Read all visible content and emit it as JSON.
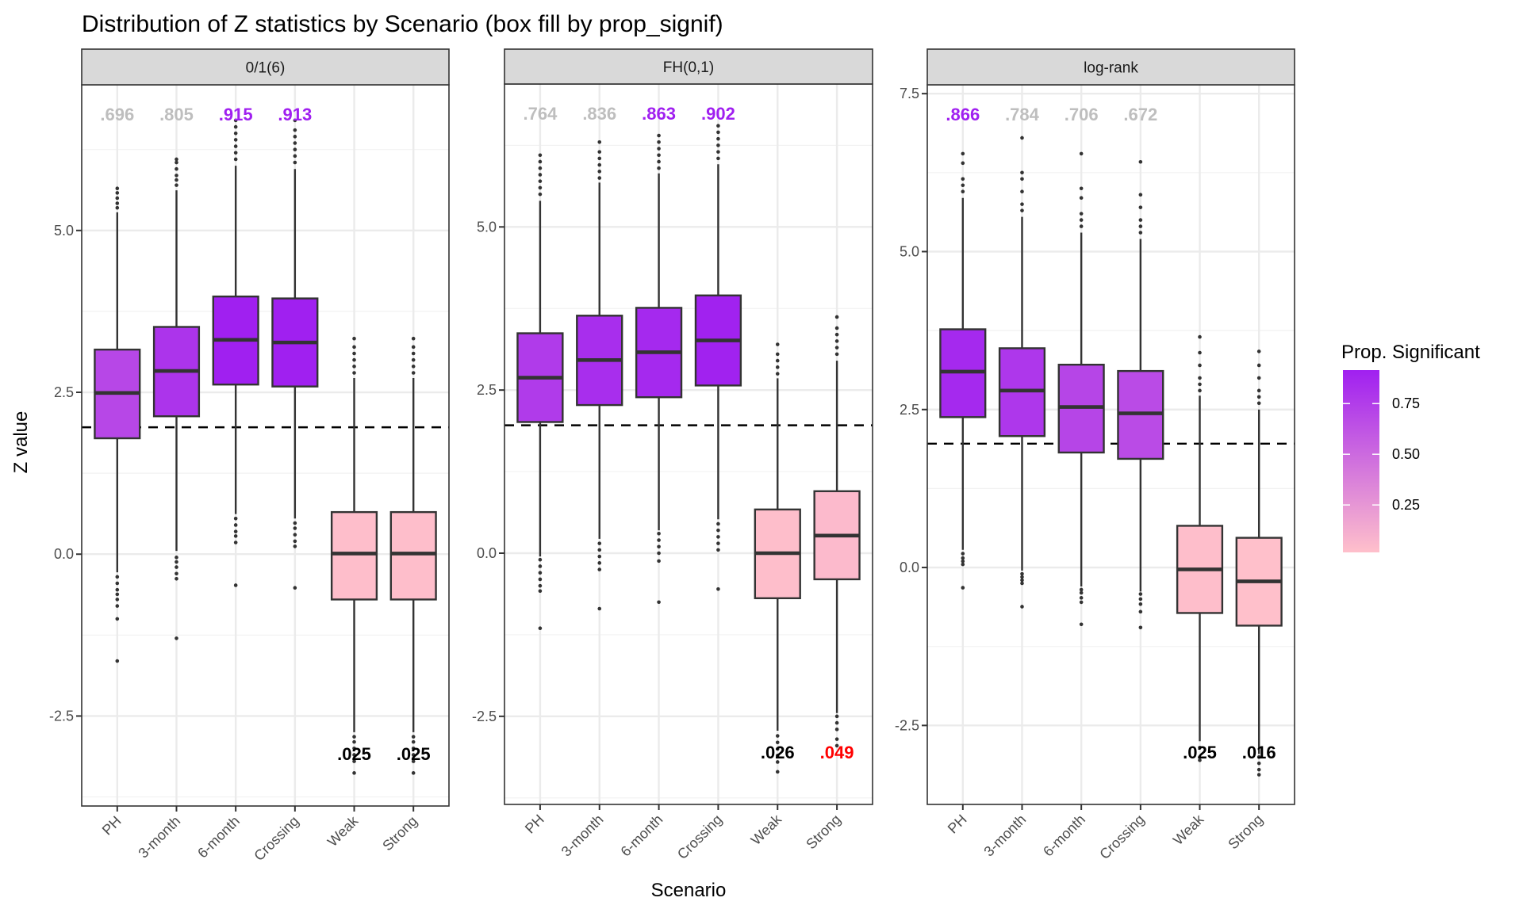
{
  "chart_data": {
    "type": "box",
    "title": "Distribution of Z statistics by Scenario (box fill by prop_signif)",
    "xlabel": "Scenario",
    "ylabel": "Z value",
    "categories": [
      "PH",
      "3-month",
      "6-month",
      "Crossing",
      "Weak",
      "Strong"
    ],
    "reference_line": {
      "y": 1.96,
      "style": "dashed",
      "color": "#000000"
    },
    "grid": true,
    "legend": {
      "title": "Prop. Significant",
      "type": "colorbar",
      "position": "right",
      "range": [
        0.016,
        0.915
      ],
      "ticks": [
        0.25,
        0.5,
        0.75
      ],
      "tick_labels": [
        "0.25",
        "0.50",
        "0.75"
      ],
      "low_color": "#FFC0CB",
      "high_color": "#A020F0"
    },
    "annotation_colors": {
      "highlight": "#A020F0",
      "muted": "#BEBEBE",
      "null": "#000000",
      "alert": "#FF0000"
    },
    "panels": [
      {
        "strip": "0/1(6)",
        "ylim": [
          -3.89,
          7.25
        ],
        "yticks": [
          -2.5,
          0.0,
          2.5,
          5.0
        ],
        "ytick_labels": [
          "-2.5",
          "0.0",
          "2.5",
          "5.0"
        ],
        "boxes": [
          {
            "category": "PH",
            "prop_signif": 0.696,
            "label": ".696",
            "label_style": "muted",
            "q1": 1.79,
            "median": 2.49,
            "q3": 3.16,
            "whisker_low": -0.28,
            "whisker_high": 5.28,
            "outliers": [
              5.35,
              5.42,
              5.5,
              5.58,
              5.65,
              -0.35,
              -0.45,
              -0.55,
              -0.62,
              -0.7,
              -0.8,
              -1.0,
              -1.65
            ]
          },
          {
            "category": "3-month",
            "prop_signif": 0.805,
            "label": ".805",
            "label_style": "muted",
            "q1": 2.13,
            "median": 2.83,
            "q3": 3.51,
            "whisker_low": 0.05,
            "whisker_high": 5.62,
            "outliers": [
              5.7,
              5.78,
              5.85,
              5.95,
              6.05,
              6.1,
              -0.05,
              -0.12,
              -0.2,
              -0.3,
              -0.38,
              -1.3
            ]
          },
          {
            "category": "6-month",
            "prop_signif": 0.915,
            "label": ".915",
            "label_style": "highlight",
            "q1": 2.62,
            "median": 3.31,
            "q3": 3.98,
            "whisker_low": 0.62,
            "whisker_high": 6.0,
            "outliers": [
              6.1,
              6.2,
              6.3,
              6.4,
              6.5,
              6.6,
              6.7,
              0.55,
              0.45,
              0.35,
              0.28,
              0.18,
              -0.48
            ]
          },
          {
            "category": "Crossing",
            "prop_signif": 0.913,
            "label": ".913",
            "label_style": "highlight",
            "q1": 2.59,
            "median": 3.27,
            "q3": 3.95,
            "whisker_low": 0.55,
            "whisker_high": 5.95,
            "outliers": [
              6.05,
              6.15,
              6.25,
              6.35,
              6.45,
              6.55,
              6.7,
              0.48,
              0.4,
              0.3,
              0.2,
              0.12,
              -0.52
            ]
          },
          {
            "category": "Weak",
            "prop_signif": 0.025,
            "label": ".025",
            "label_style": "null",
            "q1": -0.7,
            "median": 0.01,
            "q3": 0.65,
            "whisker_low": -2.75,
            "whisker_high": 2.72,
            "outliers": [
              2.8,
              2.9,
              3.0,
              3.1,
              3.2,
              3.33,
              -2.82,
              -2.9,
              -3.0,
              -3.1,
              -3.2,
              -3.38
            ]
          },
          {
            "category": "Strong",
            "prop_signif": 0.025,
            "label": ".025",
            "label_style": "null",
            "q1": -0.7,
            "median": 0.01,
            "q3": 0.65,
            "whisker_low": -2.75,
            "whisker_high": 2.72,
            "outliers": [
              2.8,
              2.9,
              3.0,
              3.1,
              3.2,
              3.33,
              -2.82,
              -2.9,
              -3.0,
              -3.1,
              -3.2,
              -3.38
            ]
          }
        ]
      },
      {
        "strip": "FH(0,1)",
        "ylim": [
          -3.85,
          7.19
        ],
        "yticks": [
          -2.5,
          0.0,
          2.5,
          5.0
        ],
        "ytick_labels": [
          "-2.5",
          "0.0",
          "2.5",
          "5.0"
        ],
        "boxes": [
          {
            "category": "PH",
            "prop_signif": 0.764,
            "label": ".764",
            "label_style": "muted",
            "q1": 2.01,
            "median": 2.69,
            "q3": 3.37,
            "whisker_low": -0.05,
            "whisker_high": 5.4,
            "outliers": [
              5.5,
              5.6,
              5.7,
              5.8,
              5.9,
              6.0,
              6.1,
              -0.1,
              -0.2,
              -0.3,
              -0.4,
              -0.5,
              -0.58,
              -1.15
            ]
          },
          {
            "category": "3-month",
            "prop_signif": 0.836,
            "label": ".836",
            "label_style": "muted",
            "q1": 2.27,
            "median": 2.96,
            "q3": 3.64,
            "whisker_low": 0.22,
            "whisker_high": 5.68,
            "outliers": [
              5.75,
              5.85,
              5.95,
              6.05,
              6.15,
              6.3,
              0.15,
              0.05,
              -0.05,
              -0.15,
              -0.25,
              -0.85
            ]
          },
          {
            "category": "6-month",
            "prop_signif": 0.863,
            "label": ".863",
            "label_style": "highlight",
            "q1": 2.39,
            "median": 3.08,
            "q3": 3.76,
            "whisker_low": 0.35,
            "whisker_high": 5.82,
            "outliers": [
              5.9,
              6.0,
              6.1,
              6.2,
              6.3,
              6.4,
              0.3,
              0.2,
              0.1,
              0.0,
              -0.12,
              -0.75
            ]
          },
          {
            "category": "Crossing",
            "prop_signif": 0.902,
            "label": ".902",
            "label_style": "highlight",
            "q1": 2.57,
            "median": 3.26,
            "q3": 3.95,
            "whisker_low": 0.52,
            "whisker_high": 5.96,
            "outliers": [
              6.05,
              6.15,
              6.25,
              6.35,
              6.45,
              6.55,
              0.45,
              0.35,
              0.25,
              0.15,
              0.05,
              -0.55
            ]
          },
          {
            "category": "Weak",
            "prop_signif": 0.026,
            "label": ".026",
            "label_style": "null",
            "q1": -0.69,
            "median": 0.0,
            "q3": 0.67,
            "whisker_low": -2.72,
            "whisker_high": 2.68,
            "outliers": [
              2.75,
              2.85,
              2.95,
              3.05,
              3.2,
              -2.8,
              -2.9,
              -3.0,
              -3.1,
              -3.2,
              -3.35
            ]
          },
          {
            "category": "Strong",
            "prop_signif": 0.049,
            "label": ".049",
            "label_style": "alert",
            "q1": -0.4,
            "median": 0.27,
            "q3": 0.95,
            "whisker_low": -2.45,
            "whisker_high": 2.95,
            "outliers": [
              3.05,
              3.15,
              3.25,
              3.35,
              3.45,
              3.62,
              -2.5,
              -2.6,
              -2.7,
              -2.85,
              -2.95
            ]
          }
        ]
      },
      {
        "strip": "log-rank",
        "ylim": [
          -3.75,
          7.64
        ],
        "yticks": [
          -2.5,
          0.0,
          2.5,
          5.0,
          7.5
        ],
        "ytick_labels": [
          "-2.5",
          "0.0",
          "2.5",
          "5.0",
          "7.5"
        ],
        "boxes": [
          {
            "category": "PH",
            "prop_signif": 0.866,
            "label": ".866",
            "label_style": "highlight",
            "q1": 2.38,
            "median": 3.1,
            "q3": 3.77,
            "whisker_low": 0.28,
            "whisker_high": 5.85,
            "outliers": [
              5.95,
              6.05,
              6.15,
              6.4,
              6.55,
              0.22,
              0.15,
              0.1,
              0.05,
              -0.32
            ]
          },
          {
            "category": "3-month",
            "prop_signif": 0.784,
            "label": ".784",
            "label_style": "muted",
            "q1": 2.08,
            "median": 2.8,
            "q3": 3.47,
            "whisker_low": -0.05,
            "whisker_high": 5.55,
            "outliers": [
              5.65,
              5.75,
              5.95,
              6.15,
              6.25,
              6.8,
              -0.1,
              -0.15,
              -0.2,
              -0.25,
              -0.62
            ]
          },
          {
            "category": "6-month",
            "prop_signif": 0.706,
            "label": ".706",
            "label_style": "muted",
            "q1": 1.82,
            "median": 2.54,
            "q3": 3.21,
            "whisker_low": -0.3,
            "whisker_high": 5.3,
            "outliers": [
              5.4,
              5.5,
              5.6,
              5.85,
              6.0,
              6.55,
              -0.35,
              -0.4,
              -0.48,
              -0.55,
              -0.9
            ]
          },
          {
            "category": "Crossing",
            "prop_signif": 0.672,
            "label": ".672",
            "label_style": "muted",
            "q1": 1.72,
            "median": 2.44,
            "q3": 3.11,
            "whisker_low": -0.38,
            "whisker_high": 5.2,
            "outliers": [
              5.3,
              5.4,
              5.5,
              5.7,
              5.9,
              6.42,
              -0.42,
              -0.5,
              -0.58,
              -0.7,
              -0.95
            ]
          },
          {
            "category": "Weak",
            "prop_signif": 0.025,
            "label": ".025",
            "label_style": "null",
            "q1": -0.72,
            "median": -0.03,
            "q3": 0.66,
            "whisker_low": -2.75,
            "whisker_high": 2.72,
            "outliers": [
              2.8,
              2.9,
              3.0,
              3.2,
              3.4,
              3.65,
              -2.85,
              -3.05
            ]
          },
          {
            "category": "Strong",
            "prop_signif": 0.016,
            "label": ".016",
            "label_style": "null",
            "q1": -0.92,
            "median": -0.22,
            "q3": 0.47,
            "whisker_low": -2.95,
            "whisker_high": 2.5,
            "outliers": [
              2.6,
              2.7,
              2.8,
              3.0,
              3.2,
              3.42,
              -3.0,
              -3.1,
              -3.2,
              -3.28
            ]
          }
        ]
      }
    ]
  }
}
